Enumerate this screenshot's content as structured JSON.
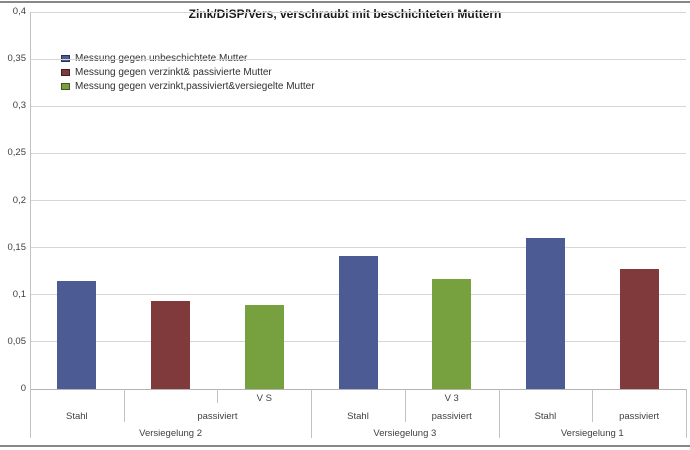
{
  "chart_data": {
    "type": "bar",
    "title": "Zink/DiSP/Vers, verschraubt mit beschichteten Muttern",
    "xlabel": "",
    "ylabel": "",
    "ylim": [
      0,
      0.4
    ],
    "ytick_values": [
      0,
      0.05,
      0.1,
      0.15,
      0.2,
      0.25,
      0.3,
      0.35,
      0.4
    ],
    "ytick_labels": [
      "0",
      "0,05",
      "0,1",
      "0,15",
      "0,2",
      "0,25",
      "0,3",
      "0,35",
      "0,4"
    ],
    "grid": true,
    "legend_position": "inside-top-left",
    "series": [
      {
        "name": "Messung gegen unbeschichtete Mutter",
        "color": "#4d5b95"
      },
      {
        "name": "Messung gegen verzinkt& passivierte Mutter",
        "color": "#813a3b"
      },
      {
        "name": "Messung gegen verzinkt,passiviert&versiegelte Mutter",
        "color": "#77a13f"
      }
    ],
    "groups": [
      {
        "label": "Versiegelung 2",
        "bars": [
          {
            "mid": "Stahl",
            "sub": "",
            "series_index": 0,
            "value": 0.115
          },
          {
            "mid": "passiviert",
            "sub": "",
            "series_index": 1,
            "value": 0.093
          },
          {
            "mid": "passiviert",
            "sub": "V S",
            "series_index": 2,
            "value": 0.089
          }
        ]
      },
      {
        "label": "Versiegelung 3",
        "bars": [
          {
            "mid": "Stahl",
            "sub": "",
            "series_index": 0,
            "value": 0.141
          },
          {
            "mid": "passiviert",
            "sub": "V 3",
            "series_index": 2,
            "value": 0.117
          }
        ]
      },
      {
        "label": "Versiegelung 1",
        "bars": [
          {
            "mid": "Stahl",
            "sub": "",
            "series_index": 0,
            "value": 0.16
          },
          {
            "mid": "passiviert",
            "sub": "",
            "series_index": 1,
            "value": 0.127
          }
        ]
      }
    ]
  },
  "colors": {
    "gridline": "#d6d6d6",
    "axis_line": "#c2c2c2",
    "baseline": "#b3b3b3",
    "chart_border": "#888888",
    "title_text": "#1a1a1a",
    "label_text": "#3f3f3f"
  }
}
